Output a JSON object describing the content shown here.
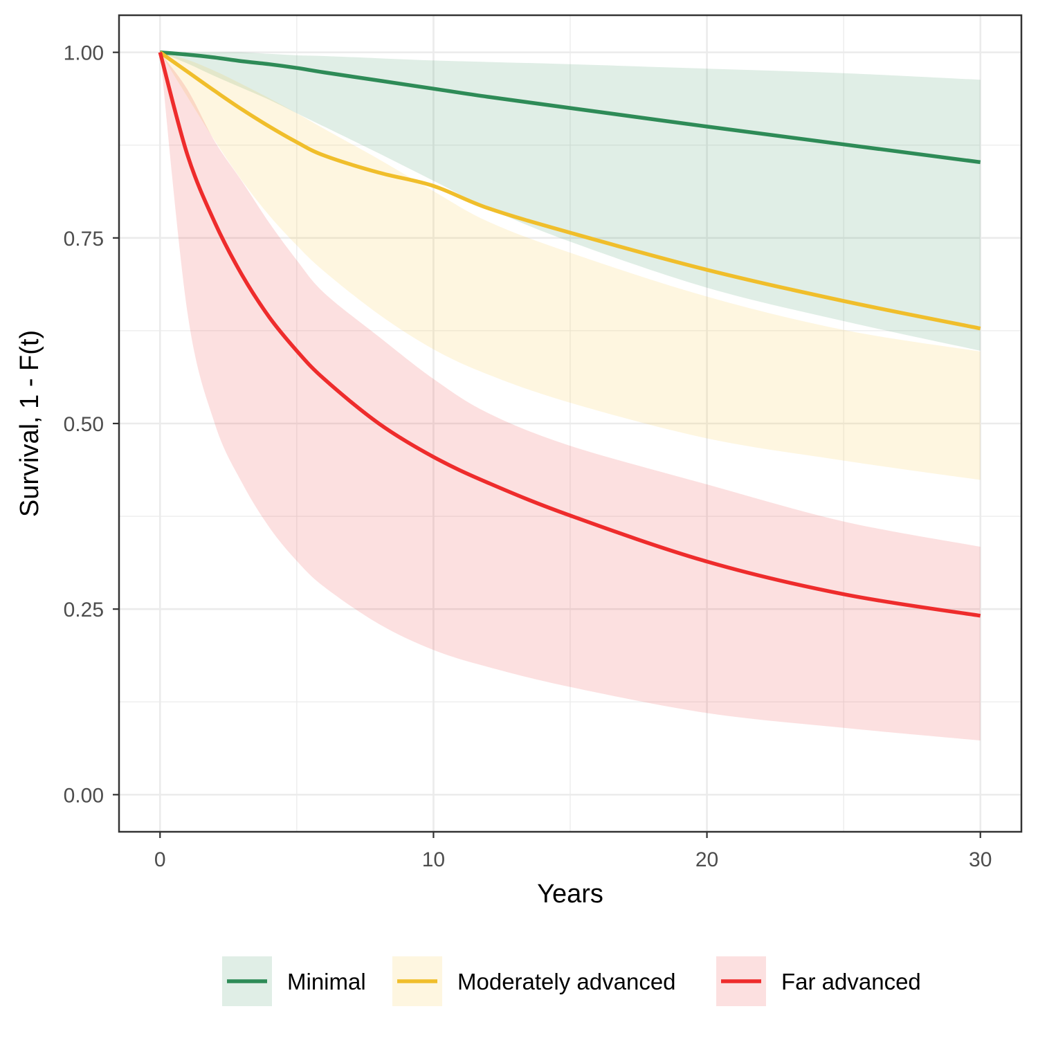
{
  "chart_data": {
    "type": "line",
    "title": "",
    "xlabel": "Years",
    "ylabel": "Survival, 1 - F(t)",
    "xlim": [
      -1.5,
      31.5
    ],
    "ylim": [
      -0.05,
      1.05
    ],
    "x_ticks": [
      0,
      10,
      20,
      30
    ],
    "x_tick_labels": [
      "0",
      "10",
      "20",
      "30"
    ],
    "y_ticks": [
      0,
      0.25,
      0.5,
      0.75,
      1.0
    ],
    "y_tick_labels": [
      "0.00",
      "0.25",
      "0.50",
      "0.75",
      "1.00"
    ],
    "grid": true,
    "legend_position": "bottom",
    "x": [
      0,
      1,
      2,
      3,
      4,
      5,
      6,
      8,
      10,
      12,
      15,
      20,
      25,
      30
    ],
    "series": [
      {
        "name": "Minimal",
        "color": "#2e8b57",
        "band_color": "#2e8b57",
        "values": [
          1.0,
          0.997,
          0.993,
          0.988,
          0.984,
          0.979,
          0.973,
          0.962,
          0.951,
          0.94,
          0.925,
          0.9,
          0.876,
          0.852
        ],
        "lower": [
          1.0,
          0.985,
          0.968,
          0.952,
          0.936,
          0.918,
          0.9,
          0.864,
          0.827,
          0.79,
          0.745,
          0.683,
          0.638,
          0.598
        ],
        "upper": [
          1.0,
          1.0,
          1.0,
          1.0,
          0.998,
          0.996,
          0.995,
          0.992,
          0.989,
          0.987,
          0.984,
          0.978,
          0.972,
          0.963
        ]
      },
      {
        "name": "Moderately advanced",
        "color": "#f0be2b",
        "band_color": "#fbc531",
        "values": [
          1.0,
          0.974,
          0.948,
          0.923,
          0.9,
          0.879,
          0.861,
          0.838,
          0.82,
          0.79,
          0.757,
          0.707,
          0.665,
          0.628
        ],
        "lower": [
          1.0,
          0.94,
          0.881,
          0.827,
          0.78,
          0.74,
          0.705,
          0.647,
          0.6,
          0.566,
          0.528,
          0.48,
          0.45,
          0.424
        ],
        "upper": [
          1.0,
          0.99,
          0.975,
          0.957,
          0.938,
          0.918,
          0.897,
          0.856,
          0.813,
          0.772,
          0.73,
          0.671,
          0.626,
          0.597
        ]
      },
      {
        "name": "Far advanced",
        "color": "#ee2c2c",
        "band_color": "#ee2c2c",
        "values": [
          1.0,
          0.862,
          0.771,
          0.7,
          0.643,
          0.598,
          0.56,
          0.5,
          0.455,
          0.42,
          0.376,
          0.314,
          0.27,
          0.241
        ],
        "lower": [
          1.0,
          0.65,
          0.5,
          0.42,
          0.36,
          0.315,
          0.28,
          0.23,
          0.195,
          0.172,
          0.145,
          0.11,
          0.09,
          0.073
        ],
        "upper": [
          1.0,
          0.95,
          0.88,
          0.826,
          0.77,
          0.72,
          0.676,
          0.617,
          0.56,
          0.514,
          0.47,
          0.418,
          0.368,
          0.334
        ]
      }
    ]
  }
}
